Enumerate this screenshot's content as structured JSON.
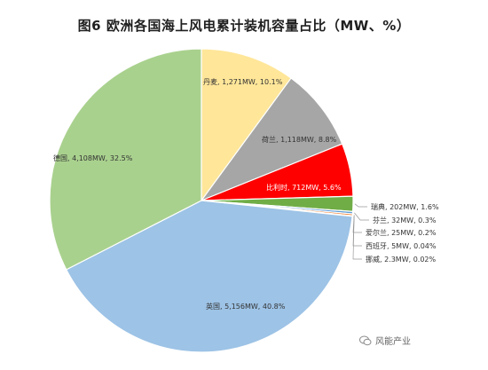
{
  "chart_data": {
    "type": "pie",
    "title": "图6  欧洲各国海上风电累计装机容量占比（MW、%）",
    "unit": "MW",
    "slices": [
      {
        "label": "丹麦, 1,271MW, 10.1%",
        "value": 1271,
        "percent": 10.1,
        "color": "#ffe699"
      },
      {
        "label": "荷兰, 1,118MW, 8.8%",
        "value": 1118,
        "percent": 8.8,
        "color": "#a6a6a6"
      },
      {
        "label": "比利时, 712MW, 5.6%",
        "value": 712,
        "percent": 5.6,
        "color": "#ff0000"
      },
      {
        "label": "瑞典, 202MW, 1.6%",
        "value": 202,
        "percent": 1.6,
        "color": "#70ad47"
      },
      {
        "label": "芬兰, 32MW, 0.3%",
        "value": 32,
        "percent": 0.3,
        "color": "#5b9bd5"
      },
      {
        "label": "爱尔兰, 25MW, 0.2%",
        "value": 25,
        "percent": 0.2,
        "color": "#ed7d31"
      },
      {
        "label": "西班牙, 5MW, 0.04%",
        "value": 5,
        "percent": 0.04,
        "color": "#7f7f7f"
      },
      {
        "label": "挪威, 2.3MW, 0.02%",
        "value": 2.3,
        "percent": 0.02,
        "color": "#4472c4"
      },
      {
        "label": "英国, 5,156MW, 40.8%",
        "value": 5156,
        "percent": 40.8,
        "color": "#9dc3e6"
      },
      {
        "label": "德国, 4,108MW, 32.5%",
        "value": 4108,
        "percent": 32.5,
        "color": "#a9d18e"
      }
    ]
  },
  "watermark": {
    "text": "风能产业",
    "icon": "wechat-icon"
  }
}
